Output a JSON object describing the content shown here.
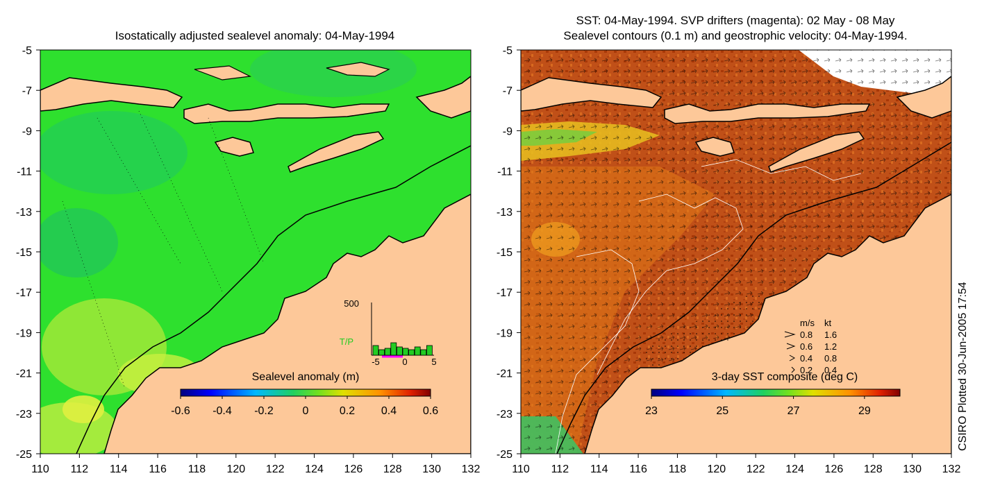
{
  "left_panel": {
    "title": "Isostatically adjusted sealevel anomaly: 04-May-1994",
    "colorbar": {
      "label": "Sealevel anomaly (m)",
      "ticks": [
        "-0.6",
        "-0.4",
        "-0.2",
        "0",
        "0.2",
        "0.4",
        "0.6"
      ],
      "range": [
        -0.6,
        0.6
      ]
    },
    "inset": {
      "ymax_label": "500",
      "source_label": "T/P",
      "x_ticks": [
        "-5",
        "0",
        "5"
      ],
      "bar_color": "#22cc22",
      "marker_color": "#ff00ff"
    }
  },
  "right_panel": {
    "title_line1": "SST: 04-May-1994. SVP drifters (magenta): 02 May - 08 May",
    "title_line2": "Sealevel contours (0.1 m) and geostrophic velocity: 04-May-1994.",
    "colorbar": {
      "label": "3-day SST composite (deg C)",
      "ticks": [
        "23",
        "25",
        "27",
        "29"
      ],
      "range": [
        23,
        30
      ]
    },
    "legend": {
      "header_ms": "m/s",
      "header_kt": "kt",
      "rows": [
        {
          "ms": "0.8",
          "kt": "1.6"
        },
        {
          "ms": "0.6",
          "kt": "1.2"
        },
        {
          "ms": "0.4",
          "kt": "0.8"
        },
        {
          "ms": "0.2",
          "kt": "0.4"
        }
      ]
    }
  },
  "axes": {
    "x_ticks": [
      "110",
      "112",
      "114",
      "116",
      "118",
      "120",
      "122",
      "124",
      "126",
      "128",
      "130",
      "132"
    ],
    "y_ticks": [
      "-5",
      "-7",
      "-9",
      "-11",
      "-13",
      "-15",
      "-17",
      "-19",
      "-21",
      "-23",
      "-25"
    ],
    "lon_range": [
      110,
      132
    ],
    "lat_range": [
      -25,
      -5
    ]
  },
  "credit": "CSIRO Plotted 30-Jun-2005 17:54",
  "colors": {
    "land": "#fdc899",
    "ocean_left": "#2ee02e",
    "ocean_right": "#c0501a",
    "coastline": "#000000"
  }
}
